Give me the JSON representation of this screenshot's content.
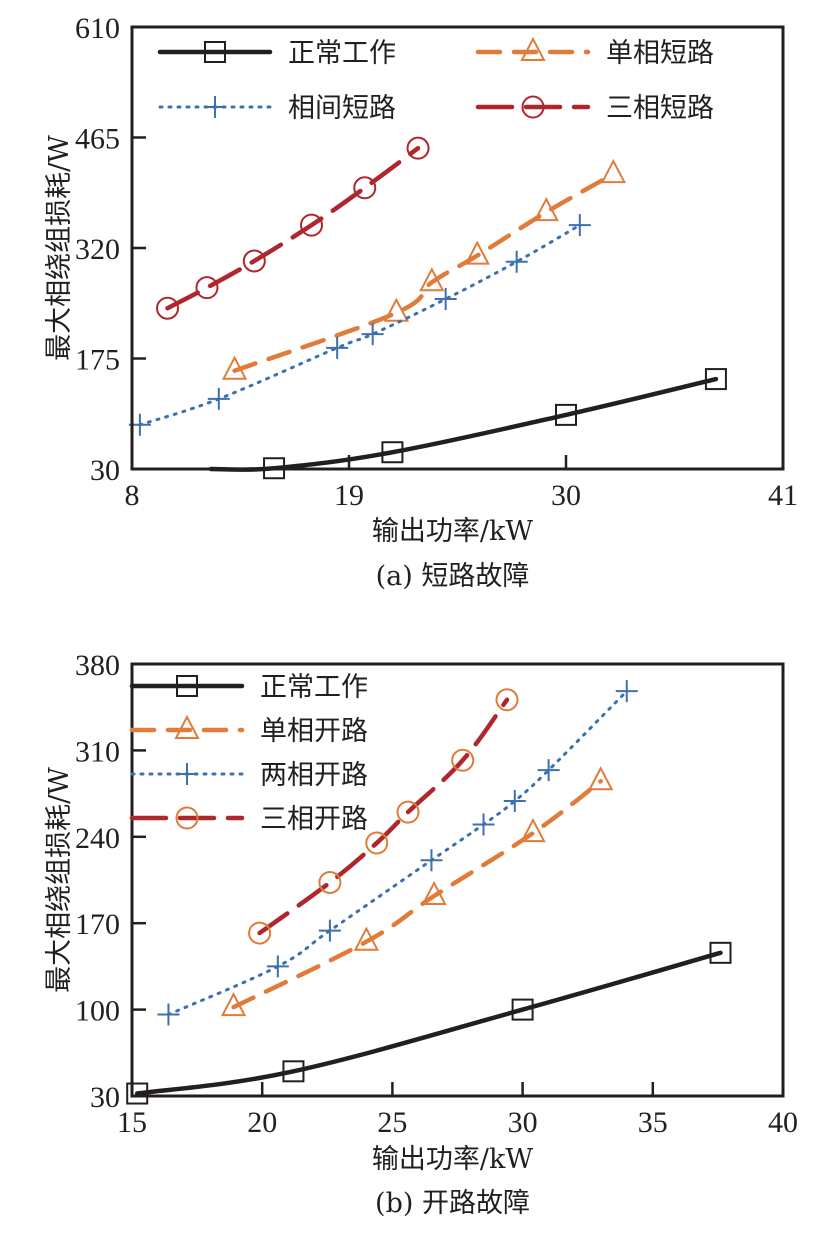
{
  "chart_data": [
    {
      "id": "a",
      "type": "line",
      "caption": "(a) 短路故障",
      "xlabel": "输出功率/kW",
      "ylabel": "最大相绕组损耗/W",
      "xlim": [
        8,
        41
      ],
      "ylim": [
        30,
        610
      ],
      "xticks": [
        8,
        19,
        30,
        41
      ],
      "yticks": [
        30,
        175,
        320,
        465,
        610
      ],
      "grid": false,
      "legend_position": "top (2 columns)",
      "series": [
        {
          "key": "normal",
          "name": "正常工作",
          "color": "#231f20",
          "marker": "square",
          "line": "solid",
          "x": [
            15.2,
            21.2,
            30.0,
            37.6
          ],
          "y": [
            31,
            52,
            101,
            148
          ],
          "line_extends_from": [
            12.0,
            30
          ]
        },
        {
          "key": "single",
          "name": "单相短路",
          "color": "#e07b39",
          "marker": "triangle",
          "line": "dashed",
          "x": [
            13.2,
            21.4,
            23.2,
            25.5,
            29.0,
            32.4
          ],
          "y": [
            159,
            235,
            275,
            310,
            367,
            417
          ]
        },
        {
          "key": "interphase",
          "name": "相间短路",
          "color": "#3e6fb0",
          "marker": "plus",
          "line": "dotted",
          "x": [
            8.4,
            12.4,
            18.4,
            20.2,
            23.9,
            27.5,
            30.7
          ],
          "y": [
            88,
            122,
            189,
            207,
            253,
            302,
            350
          ]
        },
        {
          "key": "three",
          "name": "三相短路",
          "color": "#b0262d",
          "marker": "circle",
          "marker_color": "#b0262d",
          "line": "longdash",
          "x": [
            9.8,
            11.8,
            14.2,
            17.1,
            19.8,
            22.5
          ],
          "y": [
            241,
            268,
            303,
            350,
            399,
            451
          ]
        }
      ]
    },
    {
      "id": "b",
      "type": "line",
      "caption": "(b) 开路故障",
      "xlabel": "输出功率/kW",
      "ylabel": "最大相绕组损耗/W",
      "xlim": [
        15,
        40
      ],
      "ylim": [
        30,
        380
      ],
      "xticks": [
        15,
        20,
        25,
        30,
        35,
        40
      ],
      "yticks": [
        30,
        100,
        170,
        240,
        310,
        380
      ],
      "grid": false,
      "legend_position": "top-left (1 column)",
      "series": [
        {
          "key": "normal",
          "name": "正常工作",
          "color": "#231f20",
          "marker": "square",
          "line": "solid",
          "x": [
            15.2,
            21.2,
            30.0,
            37.6
          ],
          "y": [
            32,
            50,
            100,
            146
          ]
        },
        {
          "key": "single",
          "name": "单相开路",
          "color": "#e07b39",
          "marker": "triangle",
          "line": "dashed",
          "x": [
            18.9,
            24.0,
            26.6,
            30.4,
            33.0
          ],
          "y": [
            102,
            155,
            192,
            243,
            285
          ]
        },
        {
          "key": "two",
          "name": "两相开路",
          "color": "#3e6fb0",
          "marker": "plus",
          "line": "dotted",
          "x": [
            16.4,
            20.6,
            22.6,
            26.5,
            28.5,
            29.7,
            31.0,
            34.0
          ],
          "y": [
            96,
            135,
            164,
            221,
            250,
            269,
            294,
            358
          ]
        },
        {
          "key": "three",
          "name": "三相开路",
          "color": "#b0262d",
          "marker": "circle",
          "marker_color": "#e07b39",
          "line": "longdash",
          "x": [
            19.9,
            22.6,
            24.4,
            25.6,
            27.7,
            29.4
          ],
          "y": [
            162,
            203,
            235,
            260,
            302,
            351
          ]
        }
      ]
    }
  ]
}
